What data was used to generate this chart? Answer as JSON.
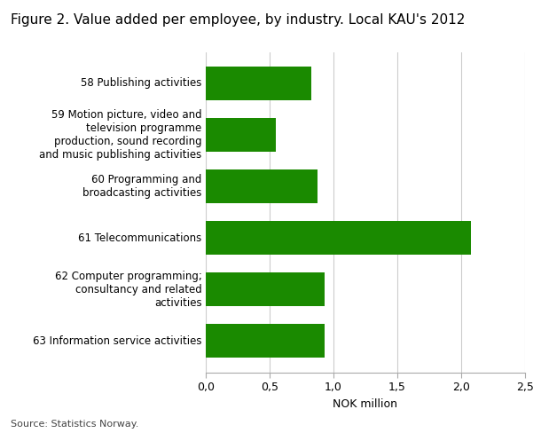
{
  "title": "Figure 2. Value added per employee, by industry. Local KAU's 2012",
  "categories": [
    "63 Information service activities",
    "62 Computer programming;\nconsultancy and related\nactivities",
    "61 Telecommunications",
    "60 Programming and\nbroadcasting activities",
    "59 Motion picture, video and\ntelevision programme\nproduction, sound recording\nand music publishing activities",
    "58 Publishing activities"
  ],
  "values": [
    0.93,
    0.93,
    2.08,
    0.88,
    0.55,
    0.83
  ],
  "bar_color": "#1a8a00",
  "xlim": [
    0,
    2.5
  ],
  "xticks": [
    0.0,
    0.5,
    1.0,
    1.5,
    2.0,
    2.5
  ],
  "xtick_labels": [
    "0,0",
    "0,5",
    "1,0",
    "1,5",
    "2,0",
    "2,5"
  ],
  "xlabel": "NOK million",
  "source": "Source: Statistics Norway.",
  "title_fontsize": 11,
  "label_fontsize": 8.5,
  "tick_fontsize": 9,
  "source_fontsize": 8,
  "xlabel_fontsize": 9,
  "background_color": "#ffffff"
}
